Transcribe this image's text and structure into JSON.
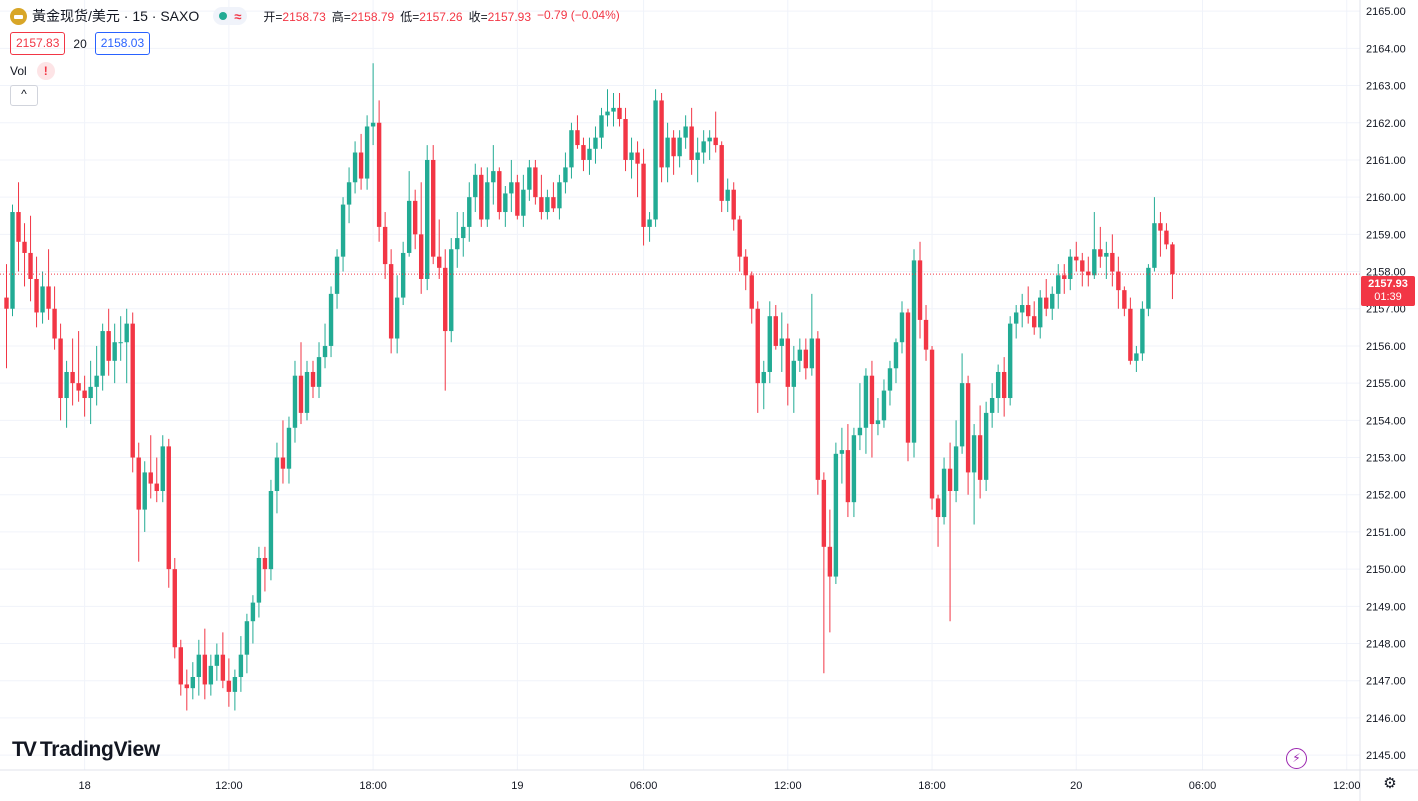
{
  "header": {
    "title": "黃金现货/美元 · 15 · SAXO",
    "wave_symbol": "≈",
    "ohlc": [
      {
        "k": "开",
        "v": "2158.73"
      },
      {
        "k": "高",
        "v": "2158.79"
      },
      {
        "k": "低",
        "v": "2157.26"
      },
      {
        "k": "收",
        "v": "2157.93"
      },
      {
        "k": "",
        "v": "−0.79 (−0.04%)"
      }
    ]
  },
  "quote": {
    "bid": "2157.83",
    "spread": "20",
    "ask": "2158.03"
  },
  "volume": {
    "label": "Vol",
    "warning": "!"
  },
  "collapse_label": "^",
  "brand": {
    "mark": "TV",
    "name": "TradingView"
  },
  "price_tag": {
    "price": "2157.93",
    "countdown": "01:39"
  },
  "colors": {
    "up": "#22ab94",
    "down": "#f23645",
    "grid": "#f0f3fa",
    "axis_text": "#131722"
  },
  "icons": {
    "status": "green-dot-icon",
    "bolt": "lightning-icon",
    "settings": "gear-icon"
  },
  "chart_data": {
    "type": "candlestick",
    "interval_minutes": 15,
    "ylim": [
      2144.6,
      2165.3
    ],
    "yticks": [
      "2145.00",
      "2146.00",
      "2147.00",
      "2148.00",
      "2149.00",
      "2150.00",
      "2151.00",
      "2152.00",
      "2153.00",
      "2154.00",
      "2155.00",
      "2156.00",
      "2157.00",
      "2158.00",
      "2159.00",
      "2160.00",
      "2161.00",
      "2162.00",
      "2163.00",
      "2164.00",
      "2165.00"
    ],
    "xticks": [
      {
        "label": "18",
        "bar": 13
      },
      {
        "label": "12:00",
        "bar": 37
      },
      {
        "label": "18:00",
        "bar": 61
      },
      {
        "label": "19",
        "bar": 85
      },
      {
        "label": "06:00",
        "bar": 106
      },
      {
        "label": "12:00",
        "bar": 130
      },
      {
        "label": "18:00",
        "bar": 154
      },
      {
        "label": "20",
        "bar": 178
      },
      {
        "label": "06:00",
        "bar": 199
      },
      {
        "label": "12:00",
        "bar": 223
      }
    ],
    "last_price": 2157.93,
    "grid": true,
    "candles": [
      [
        2157.3,
        2158.2,
        2155.4,
        2157.0
      ],
      [
        2157.0,
        2159.8,
        2156.8,
        2159.6
      ],
      [
        2159.6,
        2160.4,
        2158.0,
        2158.8
      ],
      [
        2158.8,
        2159.3,
        2157.6,
        2158.5
      ],
      [
        2158.5,
        2159.5,
        2157.2,
        2157.8
      ],
      [
        2157.8,
        2158.4,
        2156.5,
        2156.9
      ],
      [
        2156.9,
        2158.0,
        2156.6,
        2157.6
      ],
      [
        2157.6,
        2158.6,
        2156.7,
        2157.0
      ],
      [
        2157.0,
        2157.6,
        2155.9,
        2156.2
      ],
      [
        2156.2,
        2156.6,
        2154.0,
        2154.6
      ],
      [
        2154.6,
        2155.6,
        2153.8,
        2155.3
      ],
      [
        2155.3,
        2156.2,
        2154.4,
        2155.0
      ],
      [
        2155.0,
        2156.4,
        2154.5,
        2154.8
      ],
      [
        2154.8,
        2155.2,
        2154.1,
        2154.6
      ],
      [
        2154.6,
        2155.6,
        2153.9,
        2154.9
      ],
      [
        2154.9,
        2156.0,
        2154.4,
        2155.2
      ],
      [
        2155.2,
        2156.6,
        2154.8,
        2156.4
      ],
      [
        2156.4,
        2157.0,
        2155.2,
        2155.6
      ],
      [
        2155.6,
        2156.6,
        2155.0,
        2156.1
      ],
      [
        2156.1,
        2156.8,
        2155.6,
        2156.1
      ],
      [
        2156.1,
        2157.0,
        2155.0,
        2156.6
      ],
      [
        2156.6,
        2156.9,
        2152.6,
        2153.0
      ],
      [
        2153.0,
        2153.4,
        2150.2,
        2151.6
      ],
      [
        2151.6,
        2152.9,
        2151.0,
        2152.6
      ],
      [
        2152.6,
        2153.6,
        2151.9,
        2152.3
      ],
      [
        2152.3,
        2153.0,
        2151.8,
        2152.1
      ],
      [
        2152.1,
        2153.6,
        2151.8,
        2153.3
      ],
      [
        2153.3,
        2153.5,
        2149.5,
        2150.0
      ],
      [
        2150.0,
        2150.3,
        2147.6,
        2147.9
      ],
      [
        2147.9,
        2148.1,
        2146.6,
        2146.9
      ],
      [
        2146.9,
        2147.3,
        2146.2,
        2146.8
      ],
      [
        2146.8,
        2147.5,
        2146.5,
        2147.1
      ],
      [
        2147.1,
        2148.1,
        2146.6,
        2147.7
      ],
      [
        2147.7,
        2148.4,
        2146.5,
        2146.9
      ],
      [
        2146.9,
        2147.7,
        2146.6,
        2147.4
      ],
      [
        2147.4,
        2148.0,
        2147.0,
        2147.7
      ],
      [
        2147.7,
        2148.3,
        2146.8,
        2147.0
      ],
      [
        2147.0,
        2147.6,
        2146.3,
        2146.7
      ],
      [
        2146.7,
        2147.3,
        2146.2,
        2147.1
      ],
      [
        2147.1,
        2148.2,
        2146.7,
        2147.7
      ],
      [
        2147.7,
        2148.8,
        2147.2,
        2148.6
      ],
      [
        2148.6,
        2149.3,
        2148.0,
        2149.1
      ],
      [
        2149.1,
        2150.6,
        2148.7,
        2150.3
      ],
      [
        2150.3,
        2150.6,
        2149.4,
        2150.0
      ],
      [
        2150.0,
        2152.4,
        2149.7,
        2152.1
      ],
      [
        2152.1,
        2153.4,
        2151.5,
        2153.0
      ],
      [
        2153.0,
        2154.0,
        2152.3,
        2152.7
      ],
      [
        2152.7,
        2154.1,
        2152.3,
        2153.8
      ],
      [
        2153.8,
        2155.6,
        2153.4,
        2155.2
      ],
      [
        2155.2,
        2156.1,
        2153.9,
        2154.2
      ],
      [
        2154.2,
        2155.6,
        2154.0,
        2155.3
      ],
      [
        2155.3,
        2155.6,
        2154.6,
        2154.9
      ],
      [
        2154.9,
        2156.1,
        2154.6,
        2155.7
      ],
      [
        2155.7,
        2156.6,
        2155.4,
        2156.0
      ],
      [
        2156.0,
        2157.6,
        2155.7,
        2157.4
      ],
      [
        2157.4,
        2158.6,
        2157.0,
        2158.4
      ],
      [
        2158.4,
        2160.0,
        2158.0,
        2159.8
      ],
      [
        2159.8,
        2160.8,
        2159.3,
        2160.4
      ],
      [
        2160.4,
        2161.5,
        2160.1,
        2161.2
      ],
      [
        2161.2,
        2161.7,
        2160.2,
        2160.5
      ],
      [
        2160.5,
        2162.2,
        2160.2,
        2161.9
      ],
      [
        2161.9,
        2163.6,
        2161.4,
        2162.0
      ],
      [
        2162.0,
        2162.6,
        2158.8,
        2159.2
      ],
      [
        2159.2,
        2159.6,
        2157.8,
        2158.2
      ],
      [
        2158.2,
        2158.6,
        2155.8,
        2156.2
      ],
      [
        2156.2,
        2157.9,
        2155.8,
        2157.3
      ],
      [
        2157.3,
        2158.8,
        2157.1,
        2158.5
      ],
      [
        2158.5,
        2160.7,
        2158.4,
        2159.9
      ],
      [
        2159.9,
        2160.2,
        2158.6,
        2159.0
      ],
      [
        2159.0,
        2160.4,
        2157.4,
        2157.8
      ],
      [
        2157.8,
        2161.4,
        2157.5,
        2161.0
      ],
      [
        2161.0,
        2161.4,
        2158.2,
        2158.4
      ],
      [
        2158.4,
        2159.4,
        2157.8,
        2158.1
      ],
      [
        2158.1,
        2158.6,
        2154.8,
        2156.4
      ],
      [
        2156.4,
        2158.9,
        2156.1,
        2158.6
      ],
      [
        2158.6,
        2159.6,
        2158.1,
        2158.9
      ],
      [
        2158.9,
        2159.6,
        2158.4,
        2159.2
      ],
      [
        2159.2,
        2160.4,
        2158.8,
        2160.0
      ],
      [
        2160.0,
        2160.9,
        2159.6,
        2160.6
      ],
      [
        2160.6,
        2160.8,
        2159.2,
        2159.4
      ],
      [
        2159.4,
        2160.8,
        2159.2,
        2160.4
      ],
      [
        2160.4,
        2161.4,
        2159.8,
        2160.7
      ],
      [
        2160.7,
        2160.8,
        2159.4,
        2159.6
      ],
      [
        2159.6,
        2160.3,
        2159.2,
        2160.1
      ],
      [
        2160.1,
        2161.0,
        2159.6,
        2160.4
      ],
      [
        2160.4,
        2160.6,
        2159.4,
        2159.5
      ],
      [
        2159.5,
        2160.6,
        2159.2,
        2160.2
      ],
      [
        2160.2,
        2161.0,
        2159.9,
        2160.8
      ],
      [
        2160.8,
        2161.0,
        2159.8,
        2160.0
      ],
      [
        2160.0,
        2160.6,
        2159.4,
        2159.6
      ],
      [
        2159.6,
        2160.2,
        2159.4,
        2160.0
      ],
      [
        2160.0,
        2160.4,
        2159.6,
        2159.7
      ],
      [
        2159.7,
        2160.6,
        2159.4,
        2160.4
      ],
      [
        2160.4,
        2161.2,
        2160.1,
        2160.8
      ],
      [
        2160.8,
        2162.0,
        2160.5,
        2161.8
      ],
      [
        2161.8,
        2162.2,
        2161.3,
        2161.4
      ],
      [
        2161.4,
        2161.6,
        2160.7,
        2161.0
      ],
      [
        2161.0,
        2161.6,
        2160.6,
        2161.3
      ],
      [
        2161.3,
        2161.9,
        2160.9,
        2161.6
      ],
      [
        2161.6,
        2162.4,
        2161.3,
        2162.2
      ],
      [
        2162.2,
        2162.9,
        2161.9,
        2162.3
      ],
      [
        2162.3,
        2162.8,
        2161.9,
        2162.4
      ],
      [
        2162.4,
        2162.8,
        2161.9,
        2162.1
      ],
      [
        2162.1,
        2162.4,
        2160.7,
        2161.0
      ],
      [
        2161.0,
        2161.6,
        2160.5,
        2161.2
      ],
      [
        2161.2,
        2161.5,
        2160.0,
        2160.9
      ],
      [
        2160.9,
        2161.3,
        2158.7,
        2159.2
      ],
      [
        2159.2,
        2159.6,
        2158.8,
        2159.4
      ],
      [
        2159.4,
        2162.9,
        2159.2,
        2162.6
      ],
      [
        2162.6,
        2162.8,
        2160.4,
        2160.8
      ],
      [
        2160.8,
        2162.0,
        2160.4,
        2161.6
      ],
      [
        2161.6,
        2161.8,
        2160.6,
        2161.1
      ],
      [
        2161.1,
        2161.8,
        2160.8,
        2161.6
      ],
      [
        2161.6,
        2162.2,
        2161.3,
        2161.9
      ],
      [
        2161.9,
        2162.4,
        2160.6,
        2161.0
      ],
      [
        2161.0,
        2161.6,
        2160.4,
        2161.2
      ],
      [
        2161.2,
        2161.8,
        2160.9,
        2161.5
      ],
      [
        2161.5,
        2161.8,
        2161.0,
        2161.6
      ],
      [
        2161.6,
        2162.3,
        2161.2,
        2161.4
      ],
      [
        2161.4,
        2161.5,
        2159.6,
        2159.9
      ],
      [
        2159.9,
        2160.5,
        2159.6,
        2160.2
      ],
      [
        2160.2,
        2160.4,
        2159.1,
        2159.4
      ],
      [
        2159.4,
        2159.5,
        2158.0,
        2158.4
      ],
      [
        2158.4,
        2158.6,
        2157.5,
        2157.9
      ],
      [
        2157.9,
        2158.0,
        2156.6,
        2157.0
      ],
      [
        2157.0,
        2157.2,
        2154.2,
        2155.0
      ],
      [
        2155.0,
        2155.6,
        2154.3,
        2155.3
      ],
      [
        2155.3,
        2157.2,
        2155.0,
        2156.8
      ],
      [
        2156.8,
        2157.1,
        2155.9,
        2156.0
      ],
      [
        2156.0,
        2156.9,
        2155.3,
        2156.2
      ],
      [
        2156.2,
        2156.6,
        2154.4,
        2154.9
      ],
      [
        2154.9,
        2156.0,
        2154.2,
        2155.6
      ],
      [
        2155.6,
        2156.2,
        2155.3,
        2155.9
      ],
      [
        2155.9,
        2156.2,
        2155.1,
        2155.4
      ],
      [
        2155.4,
        2157.4,
        2155.2,
        2156.2
      ],
      [
        2156.2,
        2156.4,
        2152.0,
        2152.4
      ],
      [
        2152.4,
        2152.6,
        2147.2,
        2150.6
      ],
      [
        2150.6,
        2151.6,
        2148.3,
        2149.8
      ],
      [
        2149.8,
        2153.4,
        2149.6,
        2153.1
      ],
      [
        2153.1,
        2153.8,
        2152.3,
        2153.2
      ],
      [
        2153.2,
        2153.9,
        2151.4,
        2151.8
      ],
      [
        2151.8,
        2153.8,
        2151.4,
        2153.6
      ],
      [
        2153.6,
        2155.0,
        2153.2,
        2153.8
      ],
      [
        2153.8,
        2155.4,
        2153.1,
        2155.2
      ],
      [
        2155.2,
        2155.6,
        2153.0,
        2153.9
      ],
      [
        2153.9,
        2154.6,
        2153.6,
        2154.0
      ],
      [
        2154.0,
        2155.1,
        2153.8,
        2154.8
      ],
      [
        2154.8,
        2155.6,
        2154.4,
        2155.4
      ],
      [
        2155.4,
        2156.2,
        2155.0,
        2156.1
      ],
      [
        2156.1,
        2157.2,
        2155.8,
        2156.9
      ],
      [
        2156.9,
        2157.0,
        2152.9,
        2153.4
      ],
      [
        2153.4,
        2158.6,
        2153.0,
        2158.3
      ],
      [
        2158.3,
        2158.8,
        2156.2,
        2156.7
      ],
      [
        2156.7,
        2157.1,
        2155.6,
        2155.9
      ],
      [
        2155.9,
        2156.0,
        2151.6,
        2151.9
      ],
      [
        2151.9,
        2152.0,
        2150.6,
        2151.4
      ],
      [
        2151.4,
        2153.0,
        2151.2,
        2152.7
      ],
      [
        2152.7,
        2153.4,
        2148.6,
        2152.1
      ],
      [
        2152.1,
        2154.0,
        2151.8,
        2153.3
      ],
      [
        2153.3,
        2155.8,
        2153.1,
        2155.0
      ],
      [
        2155.0,
        2155.2,
        2152.0,
        2152.6
      ],
      [
        2152.6,
        2153.9,
        2151.2,
        2153.6
      ],
      [
        2153.6,
        2154.4,
        2151.9,
        2152.4
      ],
      [
        2152.4,
        2154.5,
        2152.1,
        2154.2
      ],
      [
        2154.2,
        2155.0,
        2153.8,
        2154.6
      ],
      [
        2154.6,
        2155.5,
        2154.2,
        2155.3
      ],
      [
        2155.3,
        2155.7,
        2154.1,
        2154.6
      ],
      [
        2154.6,
        2156.8,
        2154.4,
        2156.6
      ],
      [
        2156.6,
        2157.1,
        2156.2,
        2156.9
      ],
      [
        2156.9,
        2157.4,
        2156.5,
        2157.1
      ],
      [
        2157.1,
        2157.6,
        2156.6,
        2156.8
      ],
      [
        2156.8,
        2157.2,
        2156.3,
        2156.5
      ],
      [
        2156.5,
        2157.5,
        2156.2,
        2157.3
      ],
      [
        2157.3,
        2157.8,
        2156.8,
        2157.0
      ],
      [
        2157.0,
        2157.6,
        2156.7,
        2157.4
      ],
      [
        2157.4,
        2158.2,
        2157.0,
        2157.9
      ],
      [
        2157.9,
        2158.2,
        2157.4,
        2157.8
      ],
      [
        2157.8,
        2158.6,
        2157.5,
        2158.4
      ],
      [
        2158.4,
        2158.8,
        2158.0,
        2158.3
      ],
      [
        2158.3,
        2158.5,
        2157.6,
        2158.0
      ],
      [
        2158.0,
        2158.4,
        2157.6,
        2157.9
      ],
      [
        2157.9,
        2159.6,
        2157.8,
        2158.6
      ],
      [
        2158.6,
        2159.2,
        2158.1,
        2158.4
      ],
      [
        2158.4,
        2158.8,
        2157.8,
        2158.5
      ],
      [
        2158.5,
        2159.0,
        2157.6,
        2158.0
      ],
      [
        2158.0,
        2158.4,
        2157.0,
        2157.5
      ],
      [
        2157.5,
        2157.6,
        2156.8,
        2157.0
      ],
      [
        2157.0,
        2157.3,
        2155.5,
        2155.6
      ],
      [
        2155.6,
        2156.0,
        2155.3,
        2155.8
      ],
      [
        2155.8,
        2157.2,
        2155.6,
        2157.0
      ],
      [
        2157.0,
        2158.2,
        2156.8,
        2158.1
      ],
      [
        2158.1,
        2160.0,
        2158.0,
        2159.3
      ],
      [
        2159.3,
        2159.6,
        2158.4,
        2159.1
      ],
      [
        2159.1,
        2159.3,
        2158.6,
        2158.73
      ],
      [
        2158.73,
        2158.79,
        2157.26,
        2157.93
      ]
    ]
  }
}
